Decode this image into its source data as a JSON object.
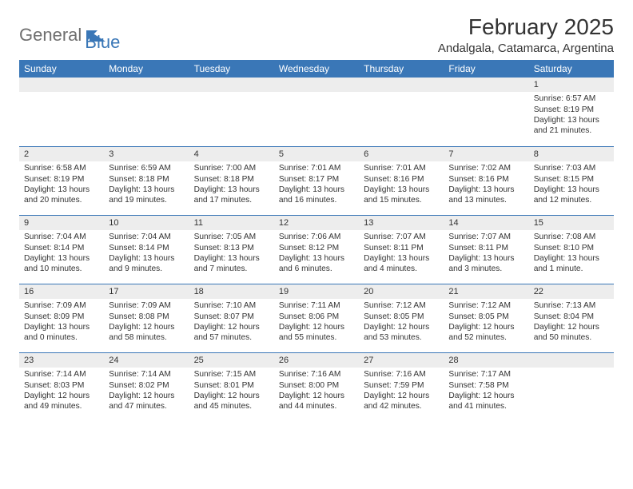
{
  "logo": {
    "part1": "General",
    "part2": "Blue"
  },
  "title": "February 2025",
  "location": "Andalgala, Catamarca, Argentina",
  "colors": {
    "accent": "#3a77b7",
    "header_text": "#ffffff",
    "daynum_bg": "#ededed",
    "text": "#333333",
    "logo_gray": "#6f6f6f"
  },
  "typography": {
    "title_fontsize": 28,
    "location_fontsize": 15,
    "weekday_fontsize": 12,
    "cell_fontsize": 10.2
  },
  "weekdays": [
    "Sunday",
    "Monday",
    "Tuesday",
    "Wednesday",
    "Thursday",
    "Friday",
    "Saturday"
  ],
  "weeks": [
    [
      {
        "n": "",
        "sunrise": "",
        "sunset": "",
        "daylight": ""
      },
      {
        "n": "",
        "sunrise": "",
        "sunset": "",
        "daylight": ""
      },
      {
        "n": "",
        "sunrise": "",
        "sunset": "",
        "daylight": ""
      },
      {
        "n": "",
        "sunrise": "",
        "sunset": "",
        "daylight": ""
      },
      {
        "n": "",
        "sunrise": "",
        "sunset": "",
        "daylight": ""
      },
      {
        "n": "",
        "sunrise": "",
        "sunset": "",
        "daylight": ""
      },
      {
        "n": "1",
        "sunrise": "Sunrise: 6:57 AM",
        "sunset": "Sunset: 8:19 PM",
        "daylight": "Daylight: 13 hours and 21 minutes."
      }
    ],
    [
      {
        "n": "2",
        "sunrise": "Sunrise: 6:58 AM",
        "sunset": "Sunset: 8:19 PM",
        "daylight": "Daylight: 13 hours and 20 minutes."
      },
      {
        "n": "3",
        "sunrise": "Sunrise: 6:59 AM",
        "sunset": "Sunset: 8:18 PM",
        "daylight": "Daylight: 13 hours and 19 minutes."
      },
      {
        "n": "4",
        "sunrise": "Sunrise: 7:00 AM",
        "sunset": "Sunset: 8:18 PM",
        "daylight": "Daylight: 13 hours and 17 minutes."
      },
      {
        "n": "5",
        "sunrise": "Sunrise: 7:01 AM",
        "sunset": "Sunset: 8:17 PM",
        "daylight": "Daylight: 13 hours and 16 minutes."
      },
      {
        "n": "6",
        "sunrise": "Sunrise: 7:01 AM",
        "sunset": "Sunset: 8:16 PM",
        "daylight": "Daylight: 13 hours and 15 minutes."
      },
      {
        "n": "7",
        "sunrise": "Sunrise: 7:02 AM",
        "sunset": "Sunset: 8:16 PM",
        "daylight": "Daylight: 13 hours and 13 minutes."
      },
      {
        "n": "8",
        "sunrise": "Sunrise: 7:03 AM",
        "sunset": "Sunset: 8:15 PM",
        "daylight": "Daylight: 13 hours and 12 minutes."
      }
    ],
    [
      {
        "n": "9",
        "sunrise": "Sunrise: 7:04 AM",
        "sunset": "Sunset: 8:14 PM",
        "daylight": "Daylight: 13 hours and 10 minutes."
      },
      {
        "n": "10",
        "sunrise": "Sunrise: 7:04 AM",
        "sunset": "Sunset: 8:14 PM",
        "daylight": "Daylight: 13 hours and 9 minutes."
      },
      {
        "n": "11",
        "sunrise": "Sunrise: 7:05 AM",
        "sunset": "Sunset: 8:13 PM",
        "daylight": "Daylight: 13 hours and 7 minutes."
      },
      {
        "n": "12",
        "sunrise": "Sunrise: 7:06 AM",
        "sunset": "Sunset: 8:12 PM",
        "daylight": "Daylight: 13 hours and 6 minutes."
      },
      {
        "n": "13",
        "sunrise": "Sunrise: 7:07 AM",
        "sunset": "Sunset: 8:11 PM",
        "daylight": "Daylight: 13 hours and 4 minutes."
      },
      {
        "n": "14",
        "sunrise": "Sunrise: 7:07 AM",
        "sunset": "Sunset: 8:11 PM",
        "daylight": "Daylight: 13 hours and 3 minutes."
      },
      {
        "n": "15",
        "sunrise": "Sunrise: 7:08 AM",
        "sunset": "Sunset: 8:10 PM",
        "daylight": "Daylight: 13 hours and 1 minute."
      }
    ],
    [
      {
        "n": "16",
        "sunrise": "Sunrise: 7:09 AM",
        "sunset": "Sunset: 8:09 PM",
        "daylight": "Daylight: 13 hours and 0 minutes."
      },
      {
        "n": "17",
        "sunrise": "Sunrise: 7:09 AM",
        "sunset": "Sunset: 8:08 PM",
        "daylight": "Daylight: 12 hours and 58 minutes."
      },
      {
        "n": "18",
        "sunrise": "Sunrise: 7:10 AM",
        "sunset": "Sunset: 8:07 PM",
        "daylight": "Daylight: 12 hours and 57 minutes."
      },
      {
        "n": "19",
        "sunrise": "Sunrise: 7:11 AM",
        "sunset": "Sunset: 8:06 PM",
        "daylight": "Daylight: 12 hours and 55 minutes."
      },
      {
        "n": "20",
        "sunrise": "Sunrise: 7:12 AM",
        "sunset": "Sunset: 8:05 PM",
        "daylight": "Daylight: 12 hours and 53 minutes."
      },
      {
        "n": "21",
        "sunrise": "Sunrise: 7:12 AM",
        "sunset": "Sunset: 8:05 PM",
        "daylight": "Daylight: 12 hours and 52 minutes."
      },
      {
        "n": "22",
        "sunrise": "Sunrise: 7:13 AM",
        "sunset": "Sunset: 8:04 PM",
        "daylight": "Daylight: 12 hours and 50 minutes."
      }
    ],
    [
      {
        "n": "23",
        "sunrise": "Sunrise: 7:14 AM",
        "sunset": "Sunset: 8:03 PM",
        "daylight": "Daylight: 12 hours and 49 minutes."
      },
      {
        "n": "24",
        "sunrise": "Sunrise: 7:14 AM",
        "sunset": "Sunset: 8:02 PM",
        "daylight": "Daylight: 12 hours and 47 minutes."
      },
      {
        "n": "25",
        "sunrise": "Sunrise: 7:15 AM",
        "sunset": "Sunset: 8:01 PM",
        "daylight": "Daylight: 12 hours and 45 minutes."
      },
      {
        "n": "26",
        "sunrise": "Sunrise: 7:16 AM",
        "sunset": "Sunset: 8:00 PM",
        "daylight": "Daylight: 12 hours and 44 minutes."
      },
      {
        "n": "27",
        "sunrise": "Sunrise: 7:16 AM",
        "sunset": "Sunset: 7:59 PM",
        "daylight": "Daylight: 12 hours and 42 minutes."
      },
      {
        "n": "28",
        "sunrise": "Sunrise: 7:17 AM",
        "sunset": "Sunset: 7:58 PM",
        "daylight": "Daylight: 12 hours and 41 minutes."
      },
      {
        "n": "",
        "sunrise": "",
        "sunset": "",
        "daylight": ""
      }
    ]
  ]
}
